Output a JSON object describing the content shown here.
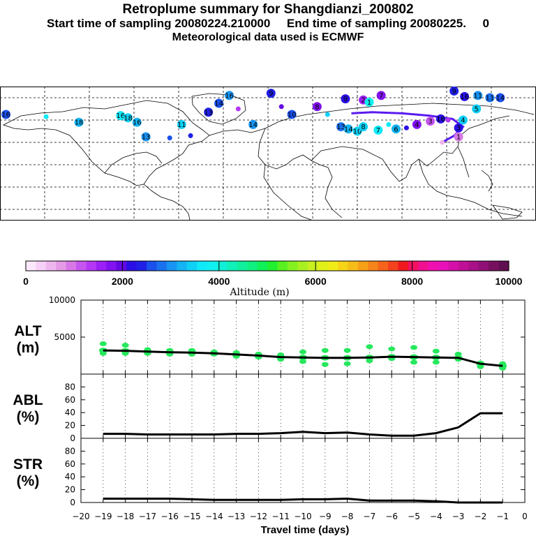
{
  "header": {
    "title": "Retroplume summary for Shangdianzi_200802",
    "subtitle": "Start time of sampling 20080224.210000     End time of sampling 20080225.     0",
    "met": "Meteorological data used is ECMWF"
  },
  "chart_data": [
    {
      "type": "scatter",
      "name": "retroplume-map",
      "description_labels": [],
      "points": [
        {
          "lon": -176,
          "lat": 65,
          "label": "16",
          "alt": 2700
        },
        {
          "lon": -149,
          "lat": 63,
          "label": "",
          "alt": 3600
        },
        {
          "lon": -127,
          "lat": 58,
          "label": "18",
          "alt": 3200
        },
        {
          "lon": -99,
          "lat": 64,
          "label": "16",
          "alt": 3700
        },
        {
          "lon": -94,
          "lat": 62,
          "label": "18",
          "alt": 3500
        },
        {
          "lon": -88,
          "lat": 58,
          "label": "16",
          "alt": 3200
        },
        {
          "lon": -82,
          "lat": 45,
          "label": "13",
          "alt": 3000
        },
        {
          "lon": -66,
          "lat": 44,
          "label": "",
          "alt": 2700
        },
        {
          "lon": -58,
          "lat": 56,
          "label": "11",
          "alt": 3500
        },
        {
          "lon": -52,
          "lat": 46,
          "label": "",
          "alt": 2300
        },
        {
          "lon": -40,
          "lat": 67,
          "label": "13",
          "alt": 2300
        },
        {
          "lon": -33,
          "lat": 75,
          "label": "14",
          "alt": 2600
        },
        {
          "lon": -26,
          "lat": 82,
          "label": "16",
          "alt": 3100
        },
        {
          "lon": -20,
          "lat": 70,
          "label": "",
          "alt": 1400
        },
        {
          "lon": -10,
          "lat": 56,
          "label": "14",
          "alt": 3000
        },
        {
          "lon": 2,
          "lat": 84,
          "label": "9",
          "alt": 2300
        },
        {
          "lon": 9,
          "lat": 72,
          "label": "",
          "alt": 1900
        },
        {
          "lon": 16,
          "lat": 65,
          "label": "10",
          "alt": 2500
        },
        {
          "lon": 40,
          "lat": 65,
          "label": "",
          "alt": 3500
        },
        {
          "lon": 49,
          "lat": 54,
          "label": "13",
          "alt": 2900
        },
        {
          "lon": 54,
          "lat": 52,
          "label": "14",
          "alt": 3200
        },
        {
          "lon": 60,
          "lat": 50,
          "label": "10",
          "alt": 3400
        },
        {
          "lon": 64,
          "lat": 54,
          "label": "8",
          "alt": 3400
        },
        {
          "lon": 74,
          "lat": 51,
          "label": "7",
          "alt": 3600
        },
        {
          "lon": 81,
          "lat": 56,
          "label": "",
          "alt": 3600
        },
        {
          "lon": 86,
          "lat": 52,
          "label": "6",
          "alt": 3300
        },
        {
          "lon": 93,
          "lat": 53,
          "label": "",
          "alt": 2100
        },
        {
          "lon": 100,
          "lat": 56,
          "label": "4",
          "alt": 1800
        },
        {
          "lon": 109,
          "lat": 59,
          "label": "3",
          "alt": 1200
        },
        {
          "lon": 116,
          "lat": 61,
          "label": "16",
          "alt": 2100
        },
        {
          "lon": 121,
          "lat": 60,
          "label": "",
          "alt": 1300
        },
        {
          "lon": 131,
          "lat": 60,
          "label": "4",
          "alt": 3400
        },
        {
          "lon": 128,
          "lat": 53,
          "label": "3",
          "alt": 2100
        },
        {
          "lon": 128,
          "lat": 45,
          "label": "1",
          "alt": 1000
        },
        {
          "lon": 117,
          "lat": 40,
          "label": "",
          "alt": 600
        },
        {
          "lon": 125,
          "lat": 86,
          "label": "9",
          "alt": 2400
        },
        {
          "lon": 132,
          "lat": 81,
          "label": "16",
          "alt": 2200
        },
        {
          "lon": 141,
          "lat": 82,
          "label": "11",
          "alt": 3000
        },
        {
          "lon": 149,
          "lat": 80,
          "label": "11",
          "alt": 2800
        },
        {
          "lon": 156,
          "lat": 80,
          "label": "14",
          "alt": 2600
        },
        {
          "lon": 140,
          "lat": 70,
          "label": "5",
          "alt": 3500
        },
        {
          "lon": 64,
          "lat": 78,
          "label": "2",
          "alt": 1600
        },
        {
          "lon": 76,
          "lat": 82,
          "label": "7",
          "alt": 1800
        },
        {
          "lon": 52,
          "lat": 79,
          "label": "9",
          "alt": 2200
        },
        {
          "lon": 33,
          "lat": 72,
          "label": "8",
          "alt": 1700
        },
        {
          "lon": 68,
          "lat": 76,
          "label": "1",
          "alt": 3800
        }
      ],
      "track": [
        {
          "lon": 117,
          "lat": 40
        },
        {
          "lon": 125,
          "lat": 46
        },
        {
          "lon": 131,
          "lat": 54
        },
        {
          "lon": 124,
          "lat": 61
        },
        {
          "lon": 108,
          "lat": 64
        },
        {
          "lon": 90,
          "lat": 66
        },
        {
          "lon": 70,
          "lat": 67
        },
        {
          "lon": 56,
          "lat": 66
        }
      ],
      "xlim": [
        -180,
        180
      ],
      "ylim": [
        -30,
        90
      ],
      "grid": true
    },
    {
      "type": "colorbar",
      "name": "altitude-colorbar",
      "colors": [
        "#fbe8fb",
        "#f6d0f6",
        "#eeb6ee",
        "#e59ae5",
        "#d778e6",
        "#c656f0",
        "#b438f5",
        "#9c20f5",
        "#8212f0",
        "#6408e6",
        "#2a10e6",
        "#2020e6",
        "#1a50ec",
        "#1a72f0",
        "#1894f2",
        "#14b4f4",
        "#10d0f6",
        "#10eaf8",
        "#10f0f0",
        "#10f0d8",
        "#10f0b8",
        "#10f09c",
        "#10f080",
        "#10f058",
        "#20f030",
        "#58f020",
        "#84f020",
        "#a8f020",
        "#c8f020",
        "#e0f018",
        "#f0ec18",
        "#f6d418",
        "#f6bc18",
        "#f6a018",
        "#f6841a",
        "#f6641c",
        "#f4421e",
        "#f01a1e",
        "#f41060",
        "#f01090",
        "#f010b0",
        "#e810b8",
        "#d410a8",
        "#c01098",
        "#a81088",
        "#901078",
        "#781060",
        "#601050"
      ],
      "ticks": [
        "0",
        "2000",
        "4000",
        "6000",
        "8000",
        "10000"
      ],
      "xlabel": "Altitude (m)",
      "range": [
        0,
        10000
      ]
    },
    {
      "type": "line",
      "name": "ALT",
      "ylabel_line1": "ALT",
      "ylabel_line2": "(m)",
      "ylim": [
        0,
        10000
      ],
      "yticks": [
        "5000",
        "10000"
      ],
      "ytick_values": [
        5000,
        10000
      ],
      "x": [
        -19,
        -18,
        -17,
        -16,
        -15,
        -14,
        -13,
        -12,
        -11,
        -10,
        -9,
        -8,
        -7,
        -6,
        -5,
        -4,
        -3,
        -2,
        -1
      ],
      "values": [
        3200,
        3150,
        3050,
        2950,
        2900,
        2800,
        2650,
        2500,
        2300,
        2250,
        2200,
        2200,
        2250,
        2350,
        2300,
        2250,
        2200,
        1400,
        1100
      ],
      "spread": [
        [
          4100,
          2800
        ],
        [
          3900,
          2800
        ],
        [
          3300,
          2800
        ],
        [
          3200,
          2700
        ],
        [
          3200,
          2700
        ],
        [
          3000,
          2700
        ],
        [
          2900,
          2400
        ],
        [
          2700,
          2300
        ],
        [
          2600,
          2000
        ],
        [
          3000,
          1700
        ],
        [
          3200,
          1300
        ],
        [
          3200,
          1400
        ],
        [
          3700,
          1800
        ],
        [
          3400,
          2100
        ],
        [
          3600,
          1600
        ],
        [
          3100,
          1600
        ],
        [
          2700,
          2000
        ],
        [
          1500,
          1000
        ],
        [
          1400,
          800
        ]
      ],
      "xlim": [
        -20,
        0
      ]
    },
    {
      "type": "line",
      "name": "ABL",
      "ylabel_line1": "ABL",
      "ylabel_line2": "(%)",
      "ylim": [
        0,
        100
      ],
      "yticks": [
        "0",
        "20",
        "40",
        "60",
        "80"
      ],
      "ytick_values": [
        0,
        20,
        40,
        60,
        80
      ],
      "x": [
        -19,
        -18,
        -17,
        -16,
        -15,
        -14,
        -13,
        -12,
        -11,
        -10,
        -9,
        -8,
        -7,
        -6,
        -5,
        -4,
        -3,
        -2,
        -1
      ],
      "values": [
        7,
        7,
        6,
        6,
        6,
        6,
        7,
        7,
        8,
        10,
        8,
        9,
        6,
        4,
        4,
        8,
        17,
        39,
        39
      ],
      "xlim": [
        -20,
        0
      ]
    },
    {
      "type": "line",
      "name": "STR",
      "ylabel_line1": "STR",
      "ylabel_line2": "(%)",
      "ylim": [
        0,
        100
      ],
      "yticks": [
        "0",
        "20",
        "40",
        "60",
        "80"
      ],
      "ytick_values": [
        0,
        20,
        40,
        60,
        80
      ],
      "x": [
        -19,
        -18,
        -17,
        -16,
        -15,
        -14,
        -13,
        -12,
        -11,
        -10,
        -9,
        -8,
        -7,
        -6,
        -5,
        -4,
        -3,
        -2,
        -1
      ],
      "values": [
        6,
        6,
        6,
        6,
        5,
        4,
        4,
        4,
        4,
        5,
        5,
        6,
        3,
        3,
        3,
        2,
        0,
        0,
        0
      ],
      "xlim": [
        -20,
        0
      ],
      "xticks": [
        "−20",
        "−19",
        "−18",
        "−17",
        "−16",
        "−15",
        "−14",
        "−13",
        "−12",
        "−11",
        "−10",
        "−9",
        "−8",
        "−7",
        "−6",
        "−5",
        "−4",
        "−3",
        "−2",
        "−1",
        "0"
      ],
      "xtick_values": [
        -20,
        -19,
        -18,
        -17,
        -16,
        -15,
        -14,
        -13,
        -12,
        -11,
        -10,
        -9,
        -8,
        -7,
        -6,
        -5,
        -4,
        -3,
        -2,
        -1,
        0
      ],
      "xlabel": "Travel time (days)"
    }
  ]
}
